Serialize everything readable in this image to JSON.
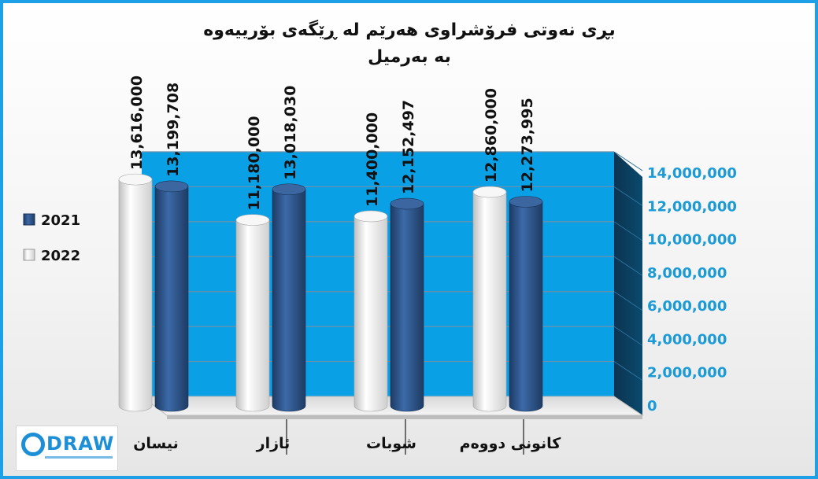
{
  "chart_data": {
    "type": "bar",
    "title_lines": [
      "بڕی نەوتی فرۆشراوی هەرێم لە ڕێگەی بۆرییەوە",
      "بە بەرمیل"
    ],
    "categories": [
      "کانونی دووەم",
      "شوبات",
      "ئازار",
      "نیسان"
    ],
    "series": [
      {
        "name": "2022",
        "values": [
          12860000,
          11400000,
          11180000,
          13616000
        ],
        "color": "#f2f2f2"
      },
      {
        "name": "2021",
        "values": [
          12273995,
          12152497,
          13018030,
          13199708
        ],
        "color": "#2b4f82"
      }
    ],
    "value_labels": [
      [
        "12,860,000",
        "11,400,000",
        "11,180,000",
        "13,616,000"
      ],
      [
        "12,273,995",
        "12,152,497",
        "13,018,030",
        "13,199,708"
      ]
    ],
    "legend": [
      "2021",
      "2022"
    ],
    "legend_position": "left",
    "y_ticks": [
      "0",
      "2,000,000",
      "4,000,000",
      "6,000,000",
      "8,000,000",
      "10,000,000",
      "12,000,000",
      "14,000,000"
    ],
    "y_axis_side": "right",
    "ylim": [
      0,
      14000000
    ],
    "category_order": "right-to-left",
    "grid": true
  },
  "logo": {
    "text": "DRAW"
  },
  "colors": {
    "frame": "#1ea0e6",
    "wall": "#0aa0e6",
    "side_wall": "#0b3c5a",
    "tick": "#1c9ad6"
  }
}
